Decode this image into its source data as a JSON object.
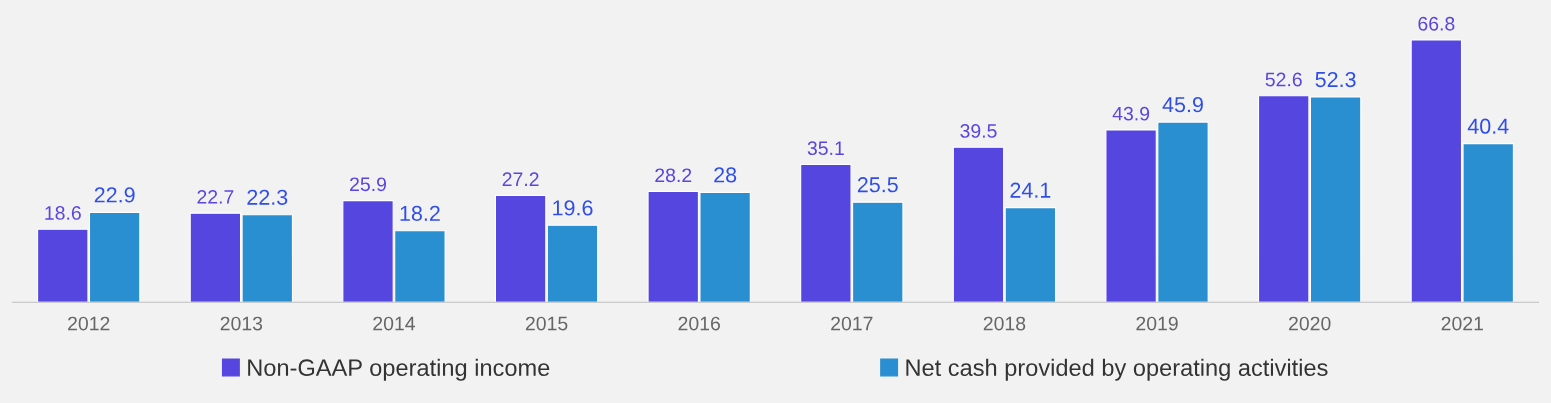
{
  "chart_data": {
    "type": "bar",
    "categories": [
      "2012",
      "2013",
      "2014",
      "2015",
      "2016",
      "2017",
      "2018",
      "2019",
      "2020",
      "2021"
    ],
    "series": [
      {
        "name": "Non-GAAP operating income",
        "color": "#5546e0",
        "values": [
          18.6,
          22.7,
          25.9,
          27.2,
          28.2,
          35.1,
          39.5,
          43.9,
          52.6,
          66.8
        ]
      },
      {
        "name": "Net cash provided by operating activities",
        "color": "#2a8fd0",
        "values": [
          22.9,
          22.3,
          18.2,
          19.6,
          28,
          25.5,
          24.1,
          45.9,
          52.3,
          40.4
        ]
      }
    ],
    "ylim": [
      0,
      77
    ],
    "data_labels": true,
    "legend": "bottom",
    "grid": false,
    "tick_labels": "x"
  }
}
